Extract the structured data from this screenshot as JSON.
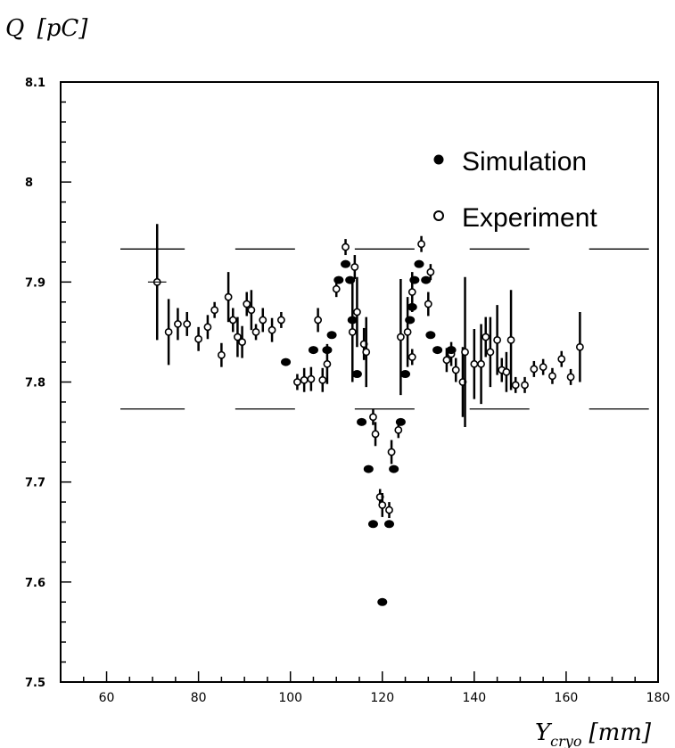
{
  "chart_data": {
    "type": "scatter",
    "ylabel": "Q",
    "ylabel_unit": "[pC]",
    "xlabel": "Y",
    "xlabel_sub": "cryo",
    "xlabel_unit": "[mm]",
    "xlim": [
      50,
      180
    ],
    "ylim": [
      7.5,
      8.1
    ],
    "x_ticks": [
      60,
      80,
      100,
      120,
      140,
      160,
      180
    ],
    "y_ticks": [
      7.5,
      7.6,
      7.7,
      7.8,
      7.9,
      8,
      8.1
    ],
    "x_tick_labels": [
      "60",
      "80",
      "100",
      "120",
      "140",
      "160",
      "180"
    ],
    "y_tick_labels": [
      "7.5",
      "7.6",
      "7.7",
      "7.8",
      "7.9",
      "8",
      "8.1"
    ],
    "legend_position": "top-right",
    "series": [
      {
        "name": "Simulation",
        "marker": "filled-circle",
        "points": [
          {
            "x": 99,
            "y": 7.82
          },
          {
            "x": 105,
            "y": 7.832
          },
          {
            "x": 108,
            "y": 7.832
          },
          {
            "x": 109,
            "y": 7.847
          },
          {
            "x": 110.5,
            "y": 7.902
          },
          {
            "x": 112,
            "y": 7.918
          },
          {
            "x": 113,
            "y": 7.902
          },
          {
            "x": 113.5,
            "y": 7.862
          },
          {
            "x": 114.5,
            "y": 7.808
          },
          {
            "x": 115.5,
            "y": 7.76
          },
          {
            "x": 117,
            "y": 7.713
          },
          {
            "x": 118,
            "y": 7.658
          },
          {
            "x": 120,
            "y": 7.58
          },
          {
            "x": 121.5,
            "y": 7.658
          },
          {
            "x": 122.5,
            "y": 7.713
          },
          {
            "x": 124,
            "y": 7.76
          },
          {
            "x": 125,
            "y": 7.808
          },
          {
            "x": 126,
            "y": 7.862
          },
          {
            "x": 126.5,
            "y": 7.875
          },
          {
            "x": 127,
            "y": 7.902
          },
          {
            "x": 128,
            "y": 7.918
          },
          {
            "x": 129.5,
            "y": 7.902
          },
          {
            "x": 130.5,
            "y": 7.847
          },
          {
            "x": 132,
            "y": 7.832
          },
          {
            "x": 135,
            "y": 7.832
          }
        ]
      },
      {
        "name": "Experiment",
        "marker": "open-circle",
        "points": [
          {
            "x": 71,
            "y": 7.9,
            "err": 0.058
          },
          {
            "x": 73.5,
            "y": 7.85,
            "err": 0.033
          },
          {
            "x": 75.5,
            "y": 7.858,
            "err": 0.016
          },
          {
            "x": 77.5,
            "y": 7.858,
            "err": 0.012
          },
          {
            "x": 80,
            "y": 7.843,
            "err": 0.012
          },
          {
            "x": 82,
            "y": 7.855,
            "err": 0.012
          },
          {
            "x": 83.5,
            "y": 7.872,
            "err": 0.008
          },
          {
            "x": 85,
            "y": 7.827,
            "err": 0.012
          },
          {
            "x": 86.5,
            "y": 7.885,
            "err": 0.025
          },
          {
            "x": 87.5,
            "y": 7.862,
            "err": 0.012
          },
          {
            "x": 88.5,
            "y": 7.845,
            "err": 0.02
          },
          {
            "x": 89.5,
            "y": 7.84,
            "err": 0.016
          },
          {
            "x": 90.5,
            "y": 7.878,
            "err": 0.012
          },
          {
            "x": 91.5,
            "y": 7.872,
            "err": 0.02
          },
          {
            "x": 92.5,
            "y": 7.85,
            "err": 0.008
          },
          {
            "x": 94,
            "y": 7.862,
            "err": 0.012
          },
          {
            "x": 96,
            "y": 7.852,
            "err": 0.012
          },
          {
            "x": 98,
            "y": 7.862,
            "err": 0.008
          },
          {
            "x": 101.5,
            "y": 7.8,
            "err": 0.008
          },
          {
            "x": 103,
            "y": 7.802,
            "err": 0.012
          },
          {
            "x": 104.5,
            "y": 7.803,
            "err": 0.012
          },
          {
            "x": 106,
            "y": 7.862,
            "err": 0.012
          },
          {
            "x": 107,
            "y": 7.802,
            "err": 0.012
          },
          {
            "x": 108,
            "y": 7.818,
            "err": 0.02
          },
          {
            "x": 110,
            "y": 7.893,
            "err": 0.008
          },
          {
            "x": 112,
            "y": 7.935,
            "err": 0.008
          },
          {
            "x": 113.5,
            "y": 7.85,
            "err": 0.05
          },
          {
            "x": 114,
            "y": 7.915,
            "err": 0.012
          },
          {
            "x": 114.5,
            "y": 7.87,
            "err": 0.035
          },
          {
            "x": 116,
            "y": 7.838,
            "err": 0.016
          },
          {
            "x": 116.5,
            "y": 7.83,
            "err": 0.035
          },
          {
            "x": 118,
            "y": 7.765,
            "err": 0.008
          },
          {
            "x": 118.5,
            "y": 7.748,
            "err": 0.012
          },
          {
            "x": 119.5,
            "y": 7.685,
            "err": 0.008
          },
          {
            "x": 120,
            "y": 7.677,
            "err": 0.012
          },
          {
            "x": 121.5,
            "y": 7.672,
            "err": 0.008
          },
          {
            "x": 122,
            "y": 7.73,
            "err": 0.012
          },
          {
            "x": 123.5,
            "y": 7.752,
            "err": 0.008
          },
          {
            "x": 124,
            "y": 7.845,
            "err": 0.058
          },
          {
            "x": 125.5,
            "y": 7.85,
            "err": 0.035
          },
          {
            "x": 126.5,
            "y": 7.825,
            "err": 0.008
          },
          {
            "x": 126.5,
            "y": 7.89,
            "err": 0.02
          },
          {
            "x": 128.5,
            "y": 7.938,
            "err": 0.008
          },
          {
            "x": 130,
            "y": 7.878,
            "err": 0.012
          },
          {
            "x": 130.5,
            "y": 7.91,
            "err": 0.008
          },
          {
            "x": 134,
            "y": 7.822,
            "err": 0.012
          },
          {
            "x": 135,
            "y": 7.828,
            "err": 0.012
          },
          {
            "x": 136,
            "y": 7.812,
            "err": 0.012
          },
          {
            "x": 137.5,
            "y": 7.8,
            "err": 0.035
          },
          {
            "x": 138,
            "y": 7.83,
            "err": 0.075
          },
          {
            "x": 140,
            "y": 7.818,
            "err": 0.035
          },
          {
            "x": 141.5,
            "y": 7.818,
            "err": 0.04
          },
          {
            "x": 142.5,
            "y": 7.845,
            "err": 0.02
          },
          {
            "x": 143.5,
            "y": 7.83,
            "err": 0.035
          },
          {
            "x": 145,
            "y": 7.842,
            "err": 0.035
          },
          {
            "x": 146,
            "y": 7.812,
            "err": 0.012
          },
          {
            "x": 147,
            "y": 7.81,
            "err": 0.02
          },
          {
            "x": 148,
            "y": 7.842,
            "err": 0.05
          },
          {
            "x": 149,
            "y": 7.797,
            "err": 0.008
          },
          {
            "x": 151,
            "y": 7.797,
            "err": 0.008
          },
          {
            "x": 153,
            "y": 7.813,
            "err": 0.008
          },
          {
            "x": 155,
            "y": 7.815,
            "err": 0.008
          },
          {
            "x": 157,
            "y": 7.806,
            "err": 0.008
          },
          {
            "x": 159,
            "y": 7.823,
            "err": 0.008
          },
          {
            "x": 161,
            "y": 7.805,
            "err": 0.008
          },
          {
            "x": 163,
            "y": 7.835,
            "err": 0.035
          }
        ]
      }
    ],
    "reference_lines": [
      {
        "x1": 63,
        "x2": 77,
        "y": 7.933
      },
      {
        "x1": 63,
        "x2": 77,
        "y": 7.773
      },
      {
        "x1": 88,
        "x2": 101,
        "y": 7.933
      },
      {
        "x1": 88,
        "x2": 101,
        "y": 7.773
      },
      {
        "x1": 114,
        "x2": 127,
        "y": 7.933
      },
      {
        "x1": 114,
        "x2": 127,
        "y": 7.773
      },
      {
        "x1": 139,
        "x2": 152,
        "y": 7.933
      },
      {
        "x1": 139,
        "x2": 152,
        "y": 7.773
      },
      {
        "x1": 165,
        "x2": 178,
        "y": 7.933
      },
      {
        "x1": 165,
        "x2": 178,
        "y": 7.773
      }
    ]
  }
}
